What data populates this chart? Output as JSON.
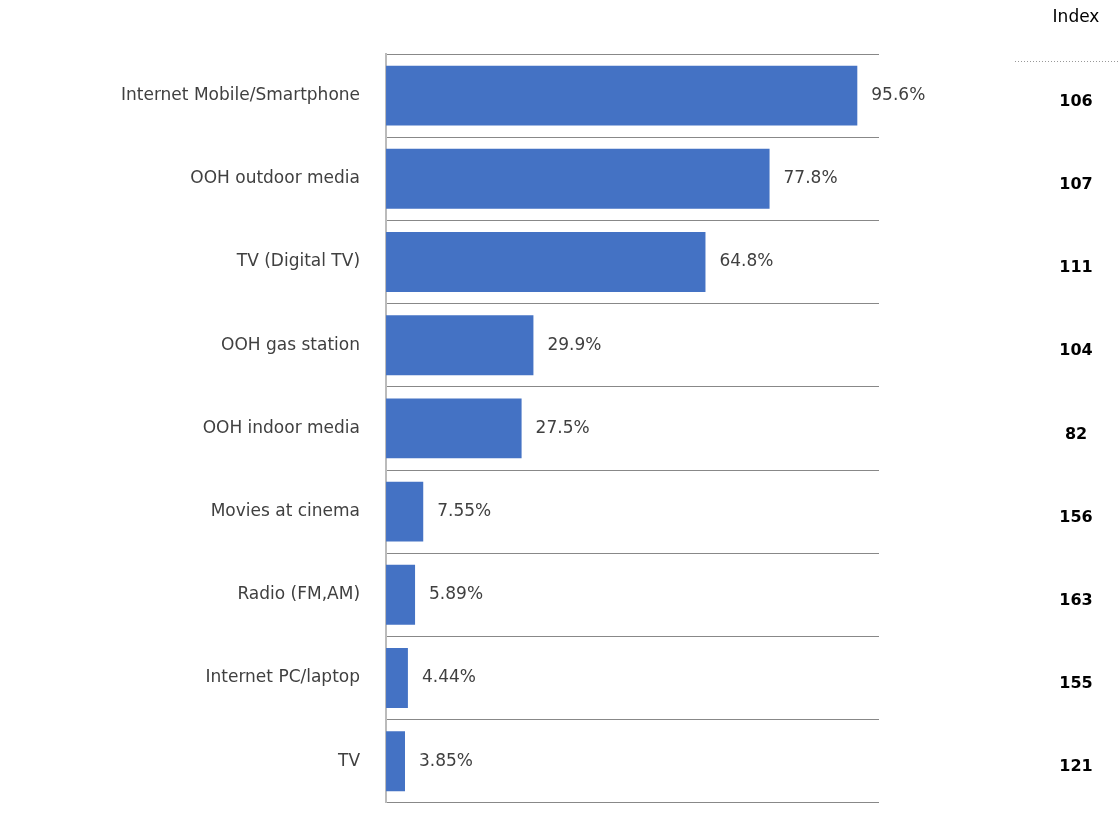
{
  "chart_data": {
    "type": "bar",
    "orientation": "horizontal",
    "categories": [
      "Internet Mobile/Smartphone",
      "OOH outdoor media",
      "TV (Digital TV)",
      "OOH gas station",
      "OOH indoor media",
      "Movies at cinema",
      "Radio (FM,AM)",
      "Internet PC/laptop",
      "TV"
    ],
    "values": [
      95.6,
      77.8,
      64.8,
      29.9,
      27.5,
      7.55,
      5.89,
      4.44,
      3.85
    ],
    "value_labels": [
      "95.6%",
      "77.8%",
      "64.8%",
      "29.9%",
      "27.5%",
      "7.55%",
      "5.89%",
      "4.44%",
      "3.85%"
    ],
    "color": "#4472c4",
    "grid": "y",
    "annotations": [
      "Index",
      "106",
      "107",
      "111",
      "104",
      "82",
      "156",
      "163",
      "155",
      "121"
    ]
  }
}
